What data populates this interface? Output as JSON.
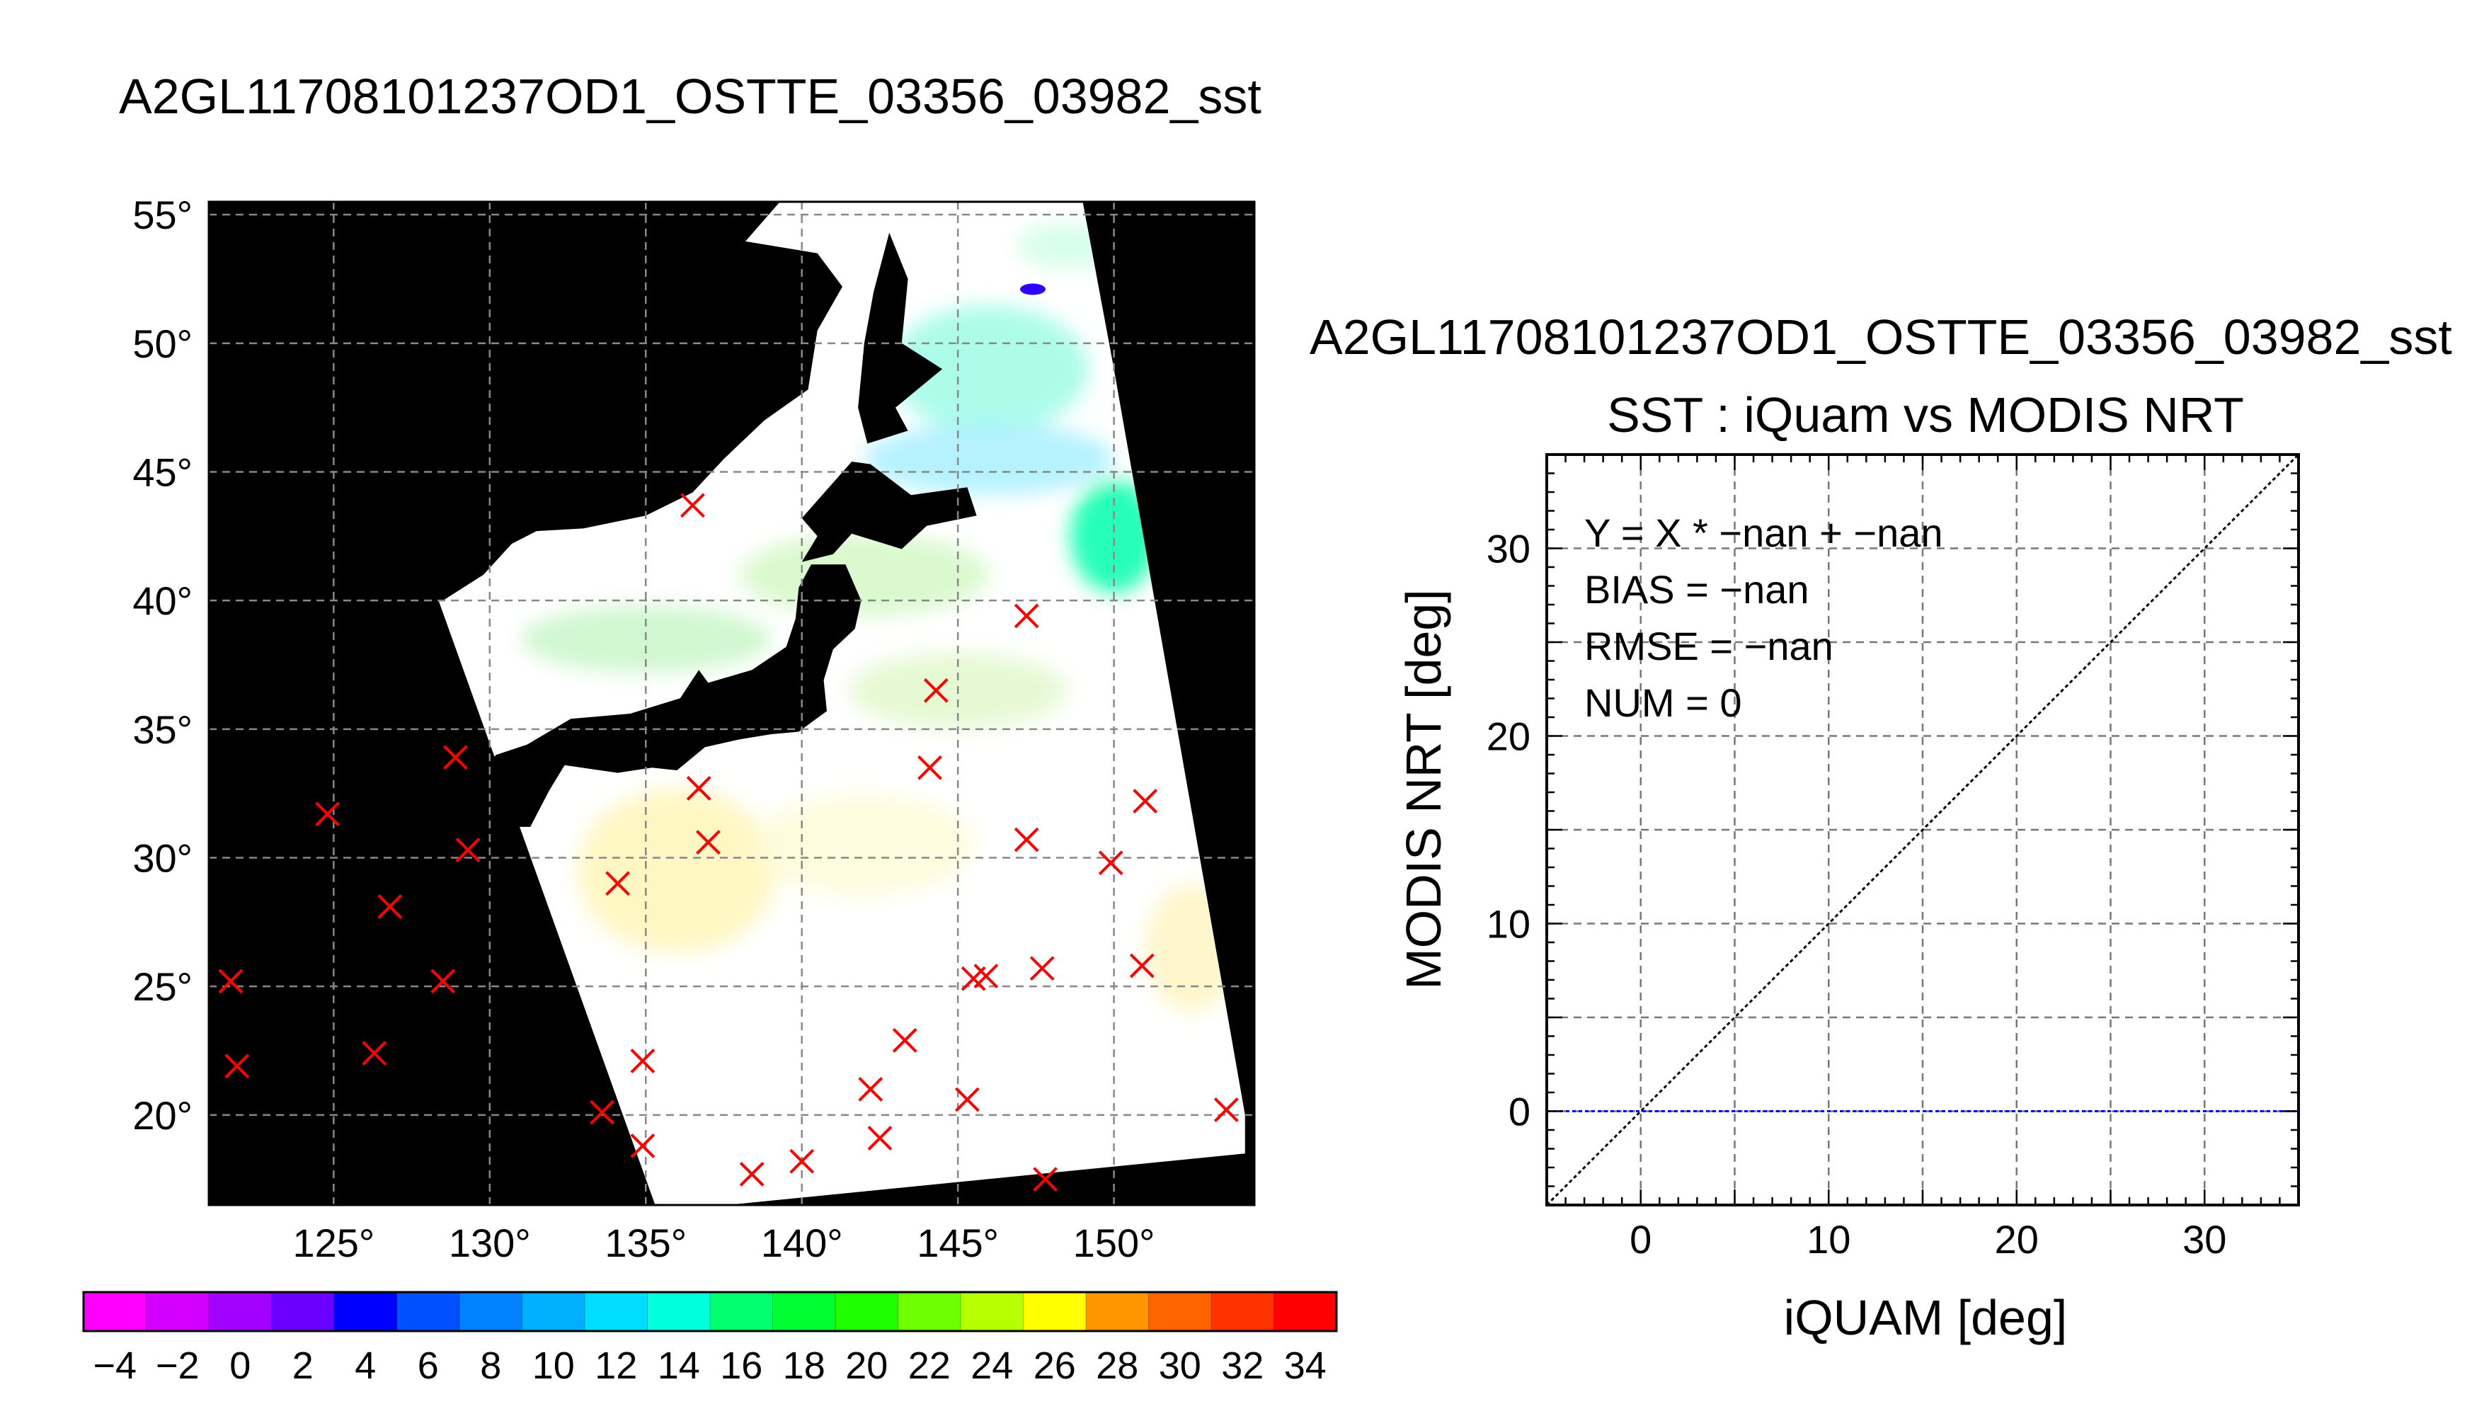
{
  "page_title": "A2GL11708101237OD1_OSTTE_03356_03982_sst",
  "chart_data": [
    {
      "type": "heatmap",
      "title": "A2GL11708101237OD1_OSTTE_03356_03982_sst",
      "xlabel": "",
      "ylabel": "",
      "xlim": [
        121,
        154.5
      ],
      "ylim": [
        16.5,
        55.5
      ],
      "x_ticks": [
        "125°",
        "130°",
        "135°",
        "140°",
        "145°",
        "150°"
      ],
      "x_tick_values": [
        125,
        130,
        135,
        140,
        145,
        150
      ],
      "y_ticks": [
        "20°",
        "25°",
        "30°",
        "35°",
        "40°",
        "45°",
        "50°",
        "55°"
      ],
      "y_tick_values": [
        20,
        25,
        30,
        35,
        40,
        45,
        50,
        55
      ],
      "grid": true,
      "background": "black",
      "swath_color": "#ffffff",
      "land_color": "#000000",
      "swath_outline": [
        [
          128.3,
          40.2
        ],
        [
          139.3,
          55.5
        ],
        [
          149.0,
          55.5
        ],
        [
          150.0,
          49.0
        ],
        [
          154.2,
          20.0
        ],
        [
          154.2,
          18.5
        ],
        [
          137.6,
          16.5
        ],
        [
          135.3,
          16.5
        ]
      ],
      "land_shapes": {
        "japan": [
          [
            129.6,
            33.0
          ],
          [
            130.4,
            31.2
          ],
          [
            131.3,
            31.2
          ],
          [
            131.9,
            32.6
          ],
          [
            132.4,
            33.6
          ],
          [
            134.1,
            33.3
          ],
          [
            135.2,
            33.5
          ],
          [
            136.0,
            33.4
          ],
          [
            136.9,
            34.3
          ],
          [
            138.0,
            34.6
          ],
          [
            139.0,
            34.8
          ],
          [
            139.9,
            34.9
          ],
          [
            140.8,
            35.7
          ],
          [
            140.7,
            36.9
          ],
          [
            141.0,
            38.1
          ],
          [
            141.7,
            38.9
          ],
          [
            141.9,
            40.0
          ],
          [
            141.4,
            41.4
          ],
          [
            140.3,
            41.4
          ],
          [
            139.9,
            40.5
          ],
          [
            139.8,
            39.3
          ],
          [
            139.5,
            38.2
          ],
          [
            138.4,
            37.3
          ],
          [
            137.0,
            36.8
          ],
          [
            136.7,
            37.3
          ],
          [
            136.1,
            36.2
          ],
          [
            134.5,
            35.6
          ],
          [
            132.6,
            35.4
          ],
          [
            131.2,
            34.4
          ],
          [
            130.2,
            34.0
          ]
        ],
        "hokkaido": [
          [
            140.0,
            41.5
          ],
          [
            140.5,
            42.5
          ],
          [
            140.0,
            43.2
          ],
          [
            141.6,
            45.4
          ],
          [
            142.2,
            45.3
          ],
          [
            143.5,
            44.1
          ],
          [
            145.3,
            44.4
          ],
          [
            145.6,
            43.3
          ],
          [
            144.0,
            42.9
          ],
          [
            143.2,
            42.0
          ],
          [
            141.6,
            42.6
          ],
          [
            141.0,
            41.8
          ]
        ],
        "sakhalin": [
          [
            142.1,
            46.1
          ],
          [
            141.8,
            47.5
          ],
          [
            142.0,
            50.0
          ],
          [
            142.3,
            52.0
          ],
          [
            142.8,
            54.3
          ],
          [
            143.4,
            52.5
          ],
          [
            143.2,
            50.0
          ],
          [
            144.5,
            49.0
          ],
          [
            143.0,
            47.5
          ],
          [
            143.4,
            46.6
          ]
        ],
        "mainland": [
          [
            121.0,
            55.5
          ],
          [
            138.4,
            55.5
          ],
          [
            137.0,
            54.2
          ],
          [
            140.5,
            53.5
          ],
          [
            141.3,
            52.2
          ],
          [
            140.5,
            50.5
          ],
          [
            140.2,
            48.2
          ],
          [
            138.8,
            47.0
          ],
          [
            137.5,
            45.5
          ],
          [
            136.5,
            44.2
          ],
          [
            135.0,
            43.3
          ],
          [
            133.0,
            42.8
          ],
          [
            131.5,
            42.7
          ],
          [
            130.7,
            42.2
          ],
          [
            129.8,
            41.0
          ],
          [
            128.5,
            40.0
          ],
          [
            127.5,
            39.8
          ],
          [
            127.7,
            39.0
          ],
          [
            128.3,
            38.5
          ],
          [
            129.0,
            37.5
          ],
          [
            129.4,
            36.2
          ],
          [
            129.3,
            35.3
          ],
          [
            128.5,
            35.0
          ],
          [
            127.3,
            34.7
          ],
          [
            126.4,
            34.5
          ],
          [
            121.0,
            34.5
          ]
        ],
        "tsushima": [
          [
            129.2,
            34.1
          ],
          [
            129.5,
            34.7
          ],
          [
            129.3,
            34.6
          ]
        ]
      },
      "color_bar": {
        "tick_labels": [
          "−4",
          "−2",
          "0",
          "2",
          "4",
          "6",
          "8",
          "10",
          "12",
          "14",
          "16",
          "18",
          "20",
          "22",
          "24",
          "26",
          "28",
          "30",
          "32",
          "34"
        ],
        "range": [
          -5,
          35
        ],
        "bins": 20,
        "colors": [
          "#ff00ff",
          "#d200ff",
          "#a200ff",
          "#6a00ff",
          "#2d00ff",
          "#0000ff",
          "#0050ff",
          "#0082ff",
          "#00b0ff",
          "#00ddff",
          "#00ffdd",
          "#00ffaa",
          "#00ff6e",
          "#00ff32",
          "#1eff00",
          "#6eff00",
          "#b4ff00",
          "#ffff00",
          "#ffc800",
          "#ff9600",
          "#ff6400",
          "#ff3200",
          "#ff0000"
        ]
      },
      "sst_patches": [
        {
          "cx": 146,
          "cy": 49,
          "rx": 3.2,
          "ry": 2.5,
          "color": "#9ffbe6"
        },
        {
          "cx": 150,
          "cy": 42.5,
          "rx": 1.4,
          "ry": 2.2,
          "color": "#00ffaa"
        },
        {
          "cx": 146,
          "cy": 45.5,
          "rx": 4.0,
          "ry": 1.4,
          "color": "#a8f0ff"
        },
        {
          "cx": 142,
          "cy": 41,
          "rx": 4.0,
          "ry": 1.6,
          "color": "#d4f8c6"
        },
        {
          "cx": 135,
          "cy": 38.5,
          "rx": 4.0,
          "ry": 1.3,
          "color": "#c8f6c8"
        },
        {
          "cx": 145,
          "cy": 36.5,
          "rx": 3.5,
          "ry": 1.5,
          "color": "#e2f8cc"
        },
        {
          "cx": 136,
          "cy": 29.5,
          "rx": 3.2,
          "ry": 3.2,
          "color": "#fff6b8"
        },
        {
          "cx": 142,
          "cy": 30.5,
          "rx": 3.5,
          "ry": 2.0,
          "color": "#fdfbd8"
        },
        {
          "cx": 152.5,
          "cy": 26.5,
          "rx": 1.5,
          "ry": 2.5,
          "color": "#fff4c2"
        },
        {
          "cx": 148.5,
          "cy": 53.8,
          "rx": 1.6,
          "ry": 0.9,
          "color": "#d0ffe8"
        }
      ],
      "sst_dots": [
        {
          "x": 147.4,
          "y": 52.1,
          "color": "#3000ff"
        }
      ],
      "markers": [
        {
          "x": 136.5,
          "y": 43.7
        },
        {
          "x": 147.2,
          "y": 39.4
        },
        {
          "x": 144.3,
          "y": 36.5
        },
        {
          "x": 128.9,
          "y": 33.9
        },
        {
          "x": 144.1,
          "y": 33.5
        },
        {
          "x": 136.7,
          "y": 32.7
        },
        {
          "x": 124.8,
          "y": 31.7
        },
        {
          "x": 151.0,
          "y": 32.2
        },
        {
          "x": 129.3,
          "y": 30.3
        },
        {
          "x": 137.0,
          "y": 30.6
        },
        {
          "x": 147.2,
          "y": 30.7
        },
        {
          "x": 149.9,
          "y": 29.8
        },
        {
          "x": 134.1,
          "y": 29.0
        },
        {
          "x": 126.8,
          "y": 28.1
        },
        {
          "x": 128.5,
          "y": 25.2
        },
        {
          "x": 121.7,
          "y": 25.2
        },
        {
          "x": 145.5,
          "y": 25.3
        },
        {
          "x": 145.9,
          "y": 25.4
        },
        {
          "x": 147.7,
          "y": 25.7
        },
        {
          "x": 150.9,
          "y": 25.8
        },
        {
          "x": 143.3,
          "y": 22.9
        },
        {
          "x": 126.3,
          "y": 22.4
        },
        {
          "x": 121.9,
          "y": 21.9
        },
        {
          "x": 134.9,
          "y": 22.1
        },
        {
          "x": 142.2,
          "y": 21.0
        },
        {
          "x": 145.3,
          "y": 20.6
        },
        {
          "x": 133.6,
          "y": 20.1
        },
        {
          "x": 153.6,
          "y": 20.2
        },
        {
          "x": 142.5,
          "y": 19.1
        },
        {
          "x": 134.9,
          "y": 18.8
        },
        {
          "x": 140.0,
          "y": 18.2
        },
        {
          "x": 138.4,
          "y": 17.7
        },
        {
          "x": 147.8,
          "y": 17.5
        }
      ],
      "marker_color": "#ff0000"
    },
    {
      "type": "scatter",
      "title": "SST : iQuam vs MODIS NRT",
      "subtitle": "A2GL11708101237OD1_OSTTE_03356_03982_sst",
      "xlabel": "iQUAM [deg]",
      "ylabel": "MODIS NRT [deg]",
      "xlim": [
        -5,
        35
      ],
      "ylim": [
        -5,
        35
      ],
      "x_ticks": [
        "0",
        "10",
        "20",
        "30"
      ],
      "x_tick_values": [
        0,
        10,
        20,
        30
      ],
      "y_ticks": [
        "0",
        "10",
        "20",
        "30"
      ],
      "y_tick_values": [
        0,
        10,
        20,
        30
      ],
      "grid": true,
      "grid_step": 5,
      "series": [],
      "annotations": [
        "Y = X * −nan + −nan",
        "BIAS = −nan",
        "RMSE = −nan",
        "NUM = 0"
      ],
      "reference_line": {
        "from": [
          -5,
          -5
        ],
        "to": [
          35,
          35
        ],
        "color": "#000000"
      },
      "zero_line": {
        "y": 0,
        "color": "#0000ff"
      }
    }
  ]
}
